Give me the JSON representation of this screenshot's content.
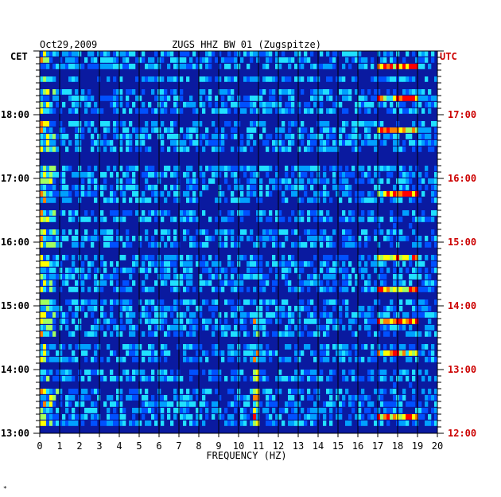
{
  "header": {
    "date": "Oct29,2009",
    "station": "ZUGS HHZ BW 01 (Zugspitze)"
  },
  "corner_mark": "*",
  "colors": {
    "utc_axis": "#cc0000",
    "cet_axis": "#000000",
    "background_band": "#0a1aa0",
    "gridline": "#000000"
  },
  "chart_data": {
    "type": "heatmap",
    "title": "ZUGS HHZ BW 01 (Zugspitze)",
    "date": "Oct29,2009",
    "xlabel": "FREQUENCY (HZ)",
    "xlim": [
      0,
      20
    ],
    "x_ticks": [
      "0",
      "1",
      "2",
      "3",
      "4",
      "5",
      "6",
      "7",
      "8",
      "9",
      "10",
      "11",
      "12",
      "13",
      "14",
      "15",
      "16",
      "17",
      "18",
      "19",
      "20"
    ],
    "left_axis": {
      "label": "CET",
      "range_hours": [
        13.0,
        19.0
      ],
      "ticks": [
        "18:00",
        "17:00",
        "16:00",
        "15:00",
        "14:00",
        "13:00"
      ]
    },
    "right_axis": {
      "label": "UTC",
      "range_hours": [
        12.0,
        18.0
      ],
      "ticks": [
        "17:00",
        "16:00",
        "15:00",
        "14:00",
        "13:00",
        "12:00"
      ]
    },
    "rows": 60,
    "row_minutes": 6,
    "grid": true,
    "colormap": [
      "#000080",
      "#0010c8",
      "#0050ff",
      "#00a0ff",
      "#20e0ff",
      "#a0ff60",
      "#ffff00",
      "#ff8000",
      "#ff0000"
    ]
  }
}
